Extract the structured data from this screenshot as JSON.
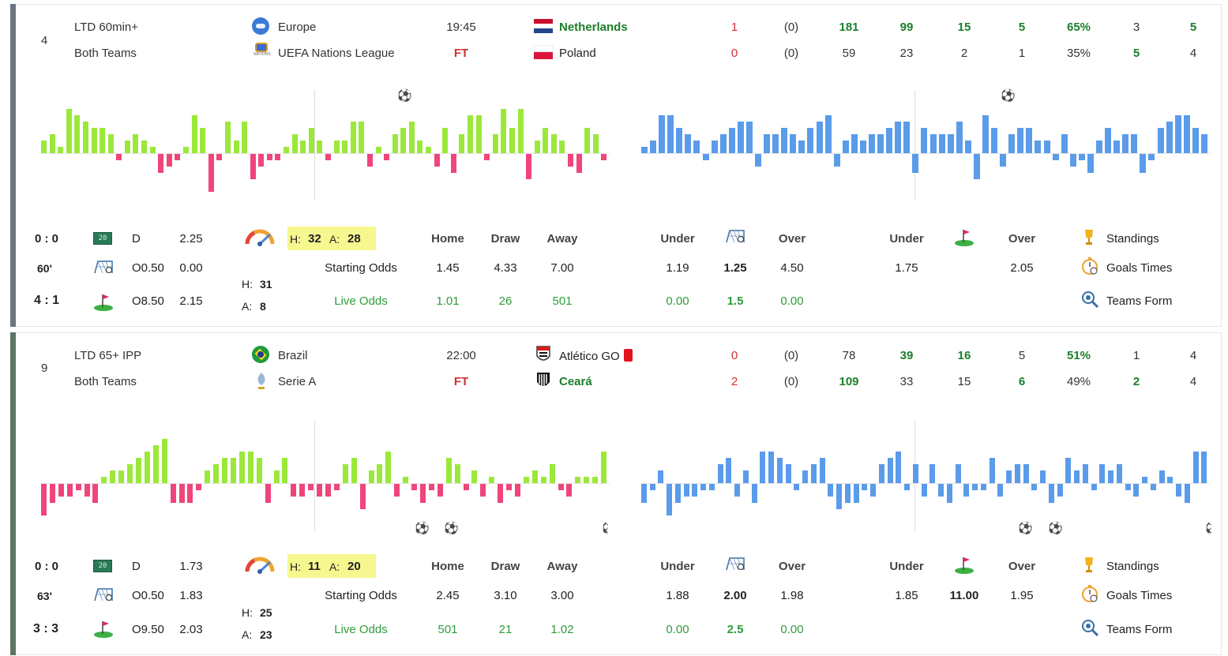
{
  "matches": [
    {
      "rank": "4",
      "strategy": "LTD 60min+",
      "market": "Both Teams",
      "country": "Europe",
      "league": "UEFA Nations League",
      "time": "19:45",
      "status": "FT",
      "home": {
        "name": "Netherlands",
        "goals": "1",
        "ht": "(0)",
        "s1": "181",
        "s2": "99",
        "s3": "15",
        "s4": "5",
        "poss": "65%",
        "s5": "3",
        "s6": "5"
      },
      "away": {
        "name": "Poland",
        "goals": "0",
        "ht": "(0)",
        "s1": "59",
        "s2": "23",
        "s3": "2",
        "s4": "1",
        "poss": "35%",
        "s5": "5",
        "s6": "4"
      },
      "score_start": "0 : 0",
      "minute": "60'",
      "score_now": "4 : 1",
      "ftr": "D",
      "ftr_odd": "2.25",
      "goal_line": "O0.50",
      "goal_line_odd": "0.00",
      "corner_line": "O8.50",
      "corner_line_odd": "2.15",
      "pressure": {
        "h_label": "H:",
        "h": "32",
        "a_label": "A:",
        "a": "28",
        "h2": "31",
        "a2": "8"
      },
      "odds": {
        "home_label": "Home",
        "draw_label": "Draw",
        "away_label": "Away",
        "starting_label": "Starting Odds",
        "live_label": "Live Odds",
        "start_home": "1.45",
        "start_draw": "4.33",
        "start_away": "7.00",
        "live_home": "1.01",
        "live_draw": "26",
        "live_away": "501"
      },
      "goals_ou": {
        "under_label": "Under",
        "over_label": "Over",
        "start_under": "1.19",
        "start_line": "1.25",
        "start_over": "4.50",
        "live_under": "0.00",
        "live_line": "1.5",
        "live_over": "0.00"
      },
      "corners_ou": {
        "under_label": "Under",
        "over_label": "Over",
        "start_under": "1.75",
        "start_line": "",
        "start_over": "2.05"
      },
      "links": {
        "standings": "Standings",
        "goals_times": "Goals Times",
        "teams_form": "Teams Form"
      }
    },
    {
      "rank": "9",
      "strategy": "LTD 65+ IPP",
      "market": "Both Teams",
      "country": "Brazil",
      "league": "Serie A",
      "time": "22:00",
      "status": "FT",
      "home": {
        "name": "Atlético GO",
        "goals": "0",
        "ht": "(0)",
        "s1": "78",
        "s2": "39",
        "s3": "16",
        "s4": "5",
        "poss": "51%",
        "s5": "1",
        "s6": "4"
      },
      "away": {
        "name": "Ceará",
        "goals": "2",
        "ht": "(0)",
        "s1": "109",
        "s2": "33",
        "s3": "15",
        "s4": "6",
        "poss": "49%",
        "s5": "2",
        "s6": "4"
      },
      "score_start": "0 : 0",
      "minute": "63'",
      "score_now": "3 : 3",
      "ftr": "D",
      "ftr_odd": "1.73",
      "goal_line": "O0.50",
      "goal_line_odd": "1.83",
      "corner_line": "O9.50",
      "corner_line_odd": "2.03",
      "pressure": {
        "h_label": "H:",
        "h": "11",
        "a_label": "A:",
        "a": "20",
        "h2": "25",
        "a2": "23"
      },
      "odds": {
        "home_label": "Home",
        "draw_label": "Draw",
        "away_label": "Away",
        "starting_label": "Starting Odds",
        "live_label": "Live Odds",
        "start_home": "2.45",
        "start_draw": "3.10",
        "start_away": "3.00",
        "live_home": "501",
        "live_draw": "21",
        "live_away": "1.02"
      },
      "goals_ou": {
        "under_label": "Under",
        "over_label": "Over",
        "start_under": "1.88",
        "start_line": "2.00",
        "start_over": "1.98",
        "live_under": "0.00",
        "live_line": "2.5",
        "live_over": "0.00"
      },
      "corners_ou": {
        "under_label": "Under",
        "over_label": "Over",
        "start_under": "1.85",
        "start_line": "11.00",
        "start_over": "1.95"
      },
      "links": {
        "standings": "Standings",
        "goals_times": "Goals Times",
        "teams_form": "Teams Form"
      }
    }
  ],
  "colors": {
    "pos_green": "#9be83a",
    "neg_pink": "#f0457a",
    "blue": "#5a9bea",
    "stripe1": "#6b7680",
    "stripe2": "#5f7463"
  },
  "chart_data": [
    {
      "type": "bar",
      "series": [
        {
          "values": [
            2,
            3,
            1,
            7,
            6,
            5,
            4,
            4,
            3,
            -1,
            2,
            3,
            2,
            1,
            -3,
            -2,
            -1,
            1,
            6,
            4,
            -6,
            -1,
            5,
            2,
            5,
            -4,
            -2,
            -1,
            -1,
            1,
            3,
            2,
            4,
            2,
            -1,
            2,
            2,
            5,
            5,
            -2,
            1,
            -1,
            3,
            4,
            5,
            2,
            1,
            -2,
            4,
            -3,
            3,
            6,
            6,
            -1,
            3,
            7,
            4,
            7,
            -4,
            2,
            4,
            3,
            2,
            -2,
            -3,
            4,
            3,
            -1
          ]
        },
        {
          "values": [
            1,
            2,
            6,
            6,
            4,
            3,
            2,
            -1,
            2,
            3,
            4,
            5,
            5,
            -2,
            3,
            3,
            4,
            3,
            2,
            4,
            5,
            6,
            -2,
            2,
            3,
            2,
            3,
            3,
            4,
            5,
            5,
            -3,
            4,
            3,
            3,
            3,
            5,
            2,
            -4,
            6,
            4,
            -2,
            3,
            4,
            4,
            2,
            2,
            -1,
            3,
            -2,
            -1,
            -3,
            2,
            4,
            2,
            3,
            3,
            -3,
            -1,
            4,
            5,
            6,
            6,
            4,
            3
          ]
        },
        {
          "values": [
            -5,
            -3,
            -2,
            -2,
            -1,
            -2,
            -3,
            1,
            2,
            2,
            3,
            4,
            5,
            6,
            7,
            -3,
            -3,
            -3,
            -1,
            2,
            3,
            4,
            4,
            5,
            5,
            4,
            -3,
            2,
            4,
            -2,
            -2,
            -1,
            -2,
            -2,
            -1,
            3,
            4,
            -4,
            2,
            3,
            5,
            -2,
            1,
            -1,
            -3,
            -1,
            -2,
            4,
            3,
            -1,
            2,
            -2,
            1,
            -3,
            -1,
            -2,
            1,
            2,
            1,
            3,
            -1,
            -2,
            1,
            1,
            1,
            5
          ]
        },
        {
          "values": [
            -3,
            -1,
            2,
            -5,
            -3,
            -2,
            -2,
            -1,
            -1,
            3,
            4,
            -2,
            2,
            -3,
            5,
            5,
            4,
            3,
            -1,
            2,
            3,
            4,
            -2,
            -4,
            -3,
            -3,
            -1,
            -2,
            3,
            4,
            5,
            -1,
            3,
            -2,
            3,
            -2,
            -3,
            3,
            -2,
            -1,
            -1,
            4,
            -2,
            2,
            3,
            3,
            -1,
            2,
            -3,
            -2,
            4,
            2,
            3,
            -1,
            3,
            2,
            3,
            -1,
            -2,
            1,
            -1,
            2,
            1,
            -2,
            -3,
            5,
            5
          ]
        }
      ]
    }
  ]
}
